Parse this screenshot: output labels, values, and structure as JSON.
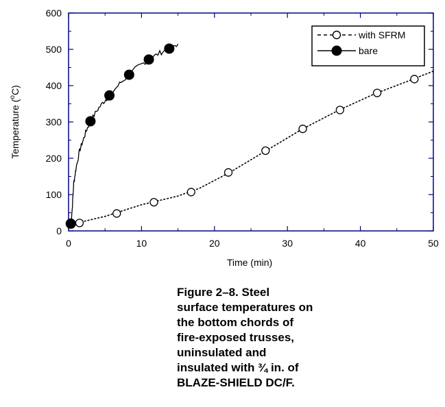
{
  "chart_data": {
    "type": "line",
    "ylabel": "Temperature (°C)",
    "xlabel": "Time (min)",
    "xlim": [
      0,
      50
    ],
    "ylim": [
      0,
      600
    ],
    "xticks": [
      0,
      10,
      20,
      30,
      40,
      50
    ],
    "yticks": [
      0,
      100,
      200,
      300,
      400,
      500,
      600
    ],
    "grid": false,
    "legend_position": "top-right",
    "series": [
      {
        "name": "with SFRM",
        "marker": "open-circle",
        "line_style": "dashed",
        "markers": [
          {
            "x": 1.5,
            "y": 22
          },
          {
            "x": 6.6,
            "y": 48
          },
          {
            "x": 11.7,
            "y": 79
          },
          {
            "x": 16.8,
            "y": 107
          },
          {
            "x": 21.9,
            "y": 161
          },
          {
            "x": 27.0,
            "y": 221
          },
          {
            "x": 32.1,
            "y": 281
          },
          {
            "x": 37.2,
            "y": 333
          },
          {
            "x": 42.3,
            "y": 380
          },
          {
            "x": 47.4,
            "y": 418
          }
        ],
        "line": [
          {
            "x": 0.3,
            "y": 18
          },
          {
            "x": 5.0,
            "y": 40
          },
          {
            "x": 10.0,
            "y": 72
          },
          {
            "x": 15.0,
            "y": 96
          },
          {
            "x": 18.0,
            "y": 118
          },
          {
            "x": 22.0,
            "y": 160
          },
          {
            "x": 27.0,
            "y": 220
          },
          {
            "x": 32.0,
            "y": 280
          },
          {
            "x": 37.0,
            "y": 332
          },
          {
            "x": 42.0,
            "y": 378
          },
          {
            "x": 47.0,
            "y": 416
          },
          {
            "x": 50.0,
            "y": 440
          }
        ]
      },
      {
        "name": "bare",
        "marker": "filled-circle",
        "line_style": "solid",
        "markers": [
          {
            "x": 0.3,
            "y": 20
          },
          {
            "x": 3.0,
            "y": 302
          },
          {
            "x": 5.6,
            "y": 373
          },
          {
            "x": 8.3,
            "y": 430
          },
          {
            "x": 11.0,
            "y": 472
          },
          {
            "x": 13.8,
            "y": 502
          }
        ],
        "line": [
          {
            "x": 0.3,
            "y": 20
          },
          {
            "x": 0.5,
            "y": 60
          },
          {
            "x": 0.7,
            "y": 130
          },
          {
            "x": 1.0,
            "y": 170
          },
          {
            "x": 1.5,
            "y": 220
          },
          {
            "x": 2.0,
            "y": 250
          },
          {
            "x": 2.5,
            "y": 280
          },
          {
            "x": 3.0,
            "y": 302
          },
          {
            "x": 4.0,
            "y": 335
          },
          {
            "x": 5.0,
            "y": 360
          },
          {
            "x": 5.6,
            "y": 373
          },
          {
            "x": 7.0,
            "y": 405
          },
          {
            "x": 8.3,
            "y": 430
          },
          {
            "x": 9.5,
            "y": 452
          },
          {
            "x": 11.0,
            "y": 472
          },
          {
            "x": 12.5,
            "y": 490
          },
          {
            "x": 13.8,
            "y": 502
          },
          {
            "x": 15.0,
            "y": 515
          }
        ]
      }
    ]
  },
  "axis": {
    "ylabel_main": "Temperature (",
    "ylabel_sup": "o",
    "ylabel_unit": "C)",
    "xlabel": "Time (min)"
  },
  "legend": {
    "sfrm_label": "with SFRM",
    "bare_label": "bare"
  },
  "caption": {
    "lines": [
      "Figure 2–8.  Steel",
      "surface temperatures on",
      "the bottom chords of",
      "fire-exposed trusses,",
      "uninsulated and",
      "insulated with ¾ in. of",
      "BLAZE-SHIELD DC/F."
    ]
  },
  "colors": {
    "axis_frame": "#000080",
    "series": "#000000",
    "background": "#ffffff"
  }
}
